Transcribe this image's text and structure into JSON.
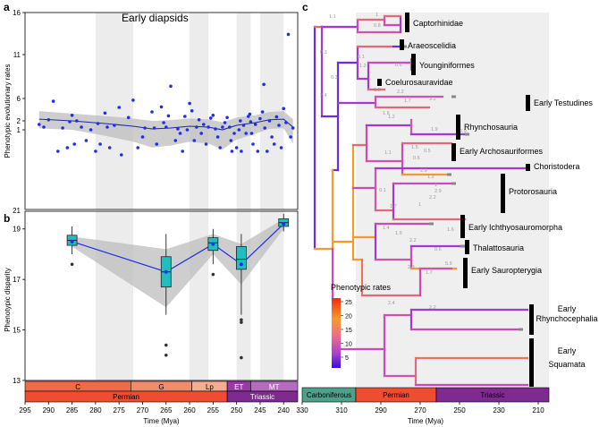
{
  "panels": {
    "a": "a",
    "b": "b",
    "c": "c"
  },
  "colors": {
    "points": "#1f2ee8",
    "smooth": "#1f2ee8",
    "ribbon": "#bdbdbd",
    "box": "#1fbfbf",
    "carboniferous": "#4fa08a",
    "permian": "#ef4c32",
    "triassic": "#7e2a8f",
    "c_stage": "#f06a4a",
    "g_stage": "#f28a6e",
    "lp_stage": "#f6ab93",
    "et_stage": "#9a3aa7",
    "mt_stage": "#b66bc1"
  },
  "chart_data": [
    {
      "type": "scatter",
      "panel": "a",
      "title": "Early diapsids",
      "ylabel": "Phenotypic evolutionary rates",
      "xlabel": "",
      "x_reversed": true,
      "xlim": [
        295,
        237
      ],
      "yticks": [
        1,
        2,
        6,
        11,
        16
      ],
      "y_axis_bottom_label": "21",
      "shaded_bands": [
        [
          280,
          272
        ],
        [
          260,
          256
        ],
        [
          250,
          247
        ],
        [
          245,
          240
        ]
      ],
      "points": [
        [
          292,
          1.6
        ],
        [
          291,
          1.3
        ],
        [
          290,
          2.2
        ],
        [
          289,
          5.5
        ],
        [
          288,
          0.4
        ],
        [
          287,
          1.2
        ],
        [
          286,
          0.5
        ],
        [
          285.5,
          1.9
        ],
        [
          285,
          3.0
        ],
        [
          284.5,
          0.6
        ],
        [
          284,
          2.0
        ],
        [
          283,
          1.3
        ],
        [
          282,
          0.7
        ],
        [
          281,
          1.0
        ],
        [
          280,
          0.4
        ],
        [
          279.5,
          1.7
        ],
        [
          279,
          0.6
        ],
        [
          278,
          3.4
        ],
        [
          277.5,
          1.3
        ],
        [
          277,
          0.5
        ],
        [
          276,
          1.5
        ],
        [
          275,
          4.4
        ],
        [
          274.5,
          0.3
        ],
        [
          273,
          2.6
        ],
        [
          272,
          5.7
        ],
        [
          271,
          0.5
        ],
        [
          270,
          0.8
        ],
        [
          269.5,
          1.2
        ],
        [
          268,
          3.6
        ],
        [
          267.5,
          1.2
        ],
        [
          267,
          0.6
        ],
        [
          266,
          4.5
        ],
        [
          265.5,
          1.8
        ],
        [
          265,
          1.3
        ],
        [
          264.5,
          2.9
        ],
        [
          264,
          7.4
        ],
        [
          263,
          0.7
        ],
        [
          262.5,
          1.1
        ],
        [
          262,
          0.9
        ],
        [
          261.5,
          0.4
        ],
        [
          261,
          2.8
        ],
        [
          260.5,
          1.0
        ],
        [
          260,
          5.1
        ],
        [
          259.5,
          3.8
        ],
        [
          259,
          0.7
        ],
        [
          258.5,
          1.3
        ],
        [
          258,
          2.2
        ],
        [
          257.5,
          0.9
        ],
        [
          257,
          1.6
        ],
        [
          256.5,
          0.6
        ],
        [
          256,
          1.3
        ],
        [
          255.5,
          2.5
        ],
        [
          255,
          3.0
        ],
        [
          254.5,
          1.1
        ],
        [
          254,
          0.8
        ],
        [
          253.5,
          0.5
        ],
        [
          252.5,
          1.8
        ],
        [
          252,
          2.6
        ],
        [
          251.5,
          1.3
        ],
        [
          251,
          0.4
        ],
        [
          250.5,
          0.9
        ],
        [
          250,
          0.5
        ],
        [
          249.5,
          1.0
        ],
        [
          249,
          0.4
        ],
        [
          248.5,
          1.5
        ],
        [
          248,
          0.9
        ],
        [
          247.5,
          2.8
        ],
        [
          247,
          1.9
        ],
        [
          246.5,
          0.6
        ],
        [
          246,
          1.6
        ],
        [
          245.5,
          0.4
        ],
        [
          245,
          2.4
        ],
        [
          244.5,
          3.6
        ],
        [
          244,
          1.2
        ],
        [
          243.5,
          0.4
        ],
        [
          243,
          2.0
        ],
        [
          242.5,
          0.8
        ],
        [
          242,
          0.6
        ],
        [
          241.5,
          2.7
        ],
        [
          241,
          1.5
        ],
        [
          240.5,
          0.5
        ],
        [
          240,
          4.2
        ],
        [
          239.5,
          1.8
        ],
        [
          239,
          13.4
        ],
        [
          238.5,
          0.8
        ],
        [
          238,
          1.2
        ],
        [
          244.2,
          7.6
        ],
        [
          247.2,
          3.2
        ],
        [
          249.2,
          2.0
        ],
        [
          253,
          1.3
        ],
        [
          251.2,
          0.7
        ],
        [
          246.8,
          0.9
        ]
      ],
      "smooth": [
        [
          292,
          2.3
        ],
        [
          285,
          2.0
        ],
        [
          278,
          1.7
        ],
        [
          272,
          1.4
        ],
        [
          268,
          1.1
        ],
        [
          264,
          1.2
        ],
        [
          260,
          1.4
        ],
        [
          256,
          1.3
        ],
        [
          253,
          1.0
        ],
        [
          250,
          1.5
        ],
        [
          246,
          1.8
        ],
        [
          243,
          2.2
        ],
        [
          240,
          2.3
        ],
        [
          238,
          1.3
        ]
      ]
    },
    {
      "type": "box",
      "panel": "b",
      "ylabel": "Phenotypic disparity",
      "xlabel": "Time (Mya)",
      "x_reversed": true,
      "xlim": [
        295,
        237
      ],
      "ylim": [
        13,
        19.7
      ],
      "yticks": [
        13,
        15,
        17,
        19
      ],
      "xticks": [
        295,
        290,
        285,
        280,
        275,
        270,
        265,
        260,
        255,
        250,
        245,
        240
      ],
      "boxes": [
        {
          "x": 285,
          "q1": 18.35,
          "median": 18.55,
          "q3": 18.75,
          "whisker_low": 18.0,
          "whisker_high": 19.1,
          "mean": 18.5,
          "outliers": [
            17.6
          ]
        },
        {
          "x": 265,
          "q1": 16.7,
          "median": 17.3,
          "q3": 17.9,
          "whisker_low": 15.6,
          "whisker_high": 18.8,
          "mean": 17.3,
          "outliers": [
            14.4,
            14.0
          ]
        },
        {
          "x": 255,
          "q1": 18.15,
          "median": 18.45,
          "q3": 18.65,
          "whisker_low": 17.6,
          "whisker_high": 19.0,
          "mean": 18.4,
          "outliers": [
            17.2
          ]
        },
        {
          "x": 249,
          "q1": 17.4,
          "median": 17.8,
          "q3": 18.3,
          "whisker_low": 15.6,
          "whisker_high": 18.8,
          "mean": 17.6,
          "outliers": [
            15.4,
            15.3,
            13.9
          ]
        },
        {
          "x": 240,
          "q1": 19.1,
          "median": 19.25,
          "q3": 19.4,
          "whisker_low": 18.9,
          "whisker_high": 19.6,
          "mean": 19.2,
          "outliers": []
        }
      ],
      "mean_line": [
        [
          285,
          18.5
        ],
        [
          265,
          17.3
        ],
        [
          255,
          18.4
        ],
        [
          249,
          17.6
        ],
        [
          240,
          19.2
        ]
      ],
      "ribbon_low": [
        [
          285,
          18.3
        ],
        [
          265,
          15.9
        ],
        [
          255,
          18.0
        ],
        [
          249,
          16.8
        ],
        [
          240,
          19.0
        ]
      ],
      "ribbon_high": [
        [
          285,
          18.7
        ],
        [
          265,
          18.2
        ],
        [
          255,
          18.8
        ],
        [
          249,
          18.4
        ],
        [
          240,
          19.4
        ]
      ]
    }
  ],
  "timescale_ab": {
    "stages": [
      {
        "label": "C",
        "from": 295,
        "to": 272.5
      },
      {
        "label": "G",
        "from": 272.5,
        "to": 259.5
      },
      {
        "label": "Lp",
        "from": 259.5,
        "to": 252
      },
      {
        "label": "ET",
        "from": 252,
        "to": 247
      },
      {
        "label": "MT",
        "from": 247,
        "to": 237
      }
    ],
    "periods": [
      {
        "label": "Permian",
        "from": 295,
        "to": 252
      },
      {
        "label": "Triassic",
        "from": 252,
        "to": 237
      }
    ]
  },
  "tree": {
    "clades": [
      "Captorhinidae",
      "Araeoscelidia",
      "Younginiformes",
      "Coelurosauravidae",
      "Early Testudines",
      "Rhynchosauria",
      "Early Archosauriformes",
      "Choristodera",
      "Protorosauria",
      "Early Ichthyosauromorpha",
      "Thalattosauria",
      "Early Sauropterygia",
      "Early Rhynchocephalia",
      "Early Squamata"
    ],
    "branch_labels": [
      "1.1",
      "1",
      "0.8",
      "0.3",
      "0.3",
      "0.1",
      "1.2",
      "0.6",
      "1.5",
      "2.2",
      "2.4",
      "1.7",
      "3.2",
      "1.6",
      "1.2",
      "1.9",
      "0.9",
      "1.5",
      "0.5",
      "1.1",
      "0.6",
      "2.9",
      "1.2",
      "1",
      "2.9",
      "2.2",
      "1",
      "0.1",
      "1.7",
      "1.4",
      "1.9",
      "1.6",
      "2.2",
      "0.6",
      "5.9",
      "1.7",
      "2.3",
      "2.4",
      "2.2"
    ],
    "legend_title": "Phenotypic rates",
    "legend_ticks": [
      "25",
      "20",
      "15",
      "10",
      "5"
    ],
    "xlabel": "Time (Mya)",
    "xticks": [
      "330",
      "310",
      "290",
      "270",
      "250",
      "230",
      "210"
    ],
    "periods": [
      {
        "label": "Carboniferous"
      },
      {
        "label": "Permian"
      },
      {
        "label": "Triassic"
      }
    ]
  }
}
